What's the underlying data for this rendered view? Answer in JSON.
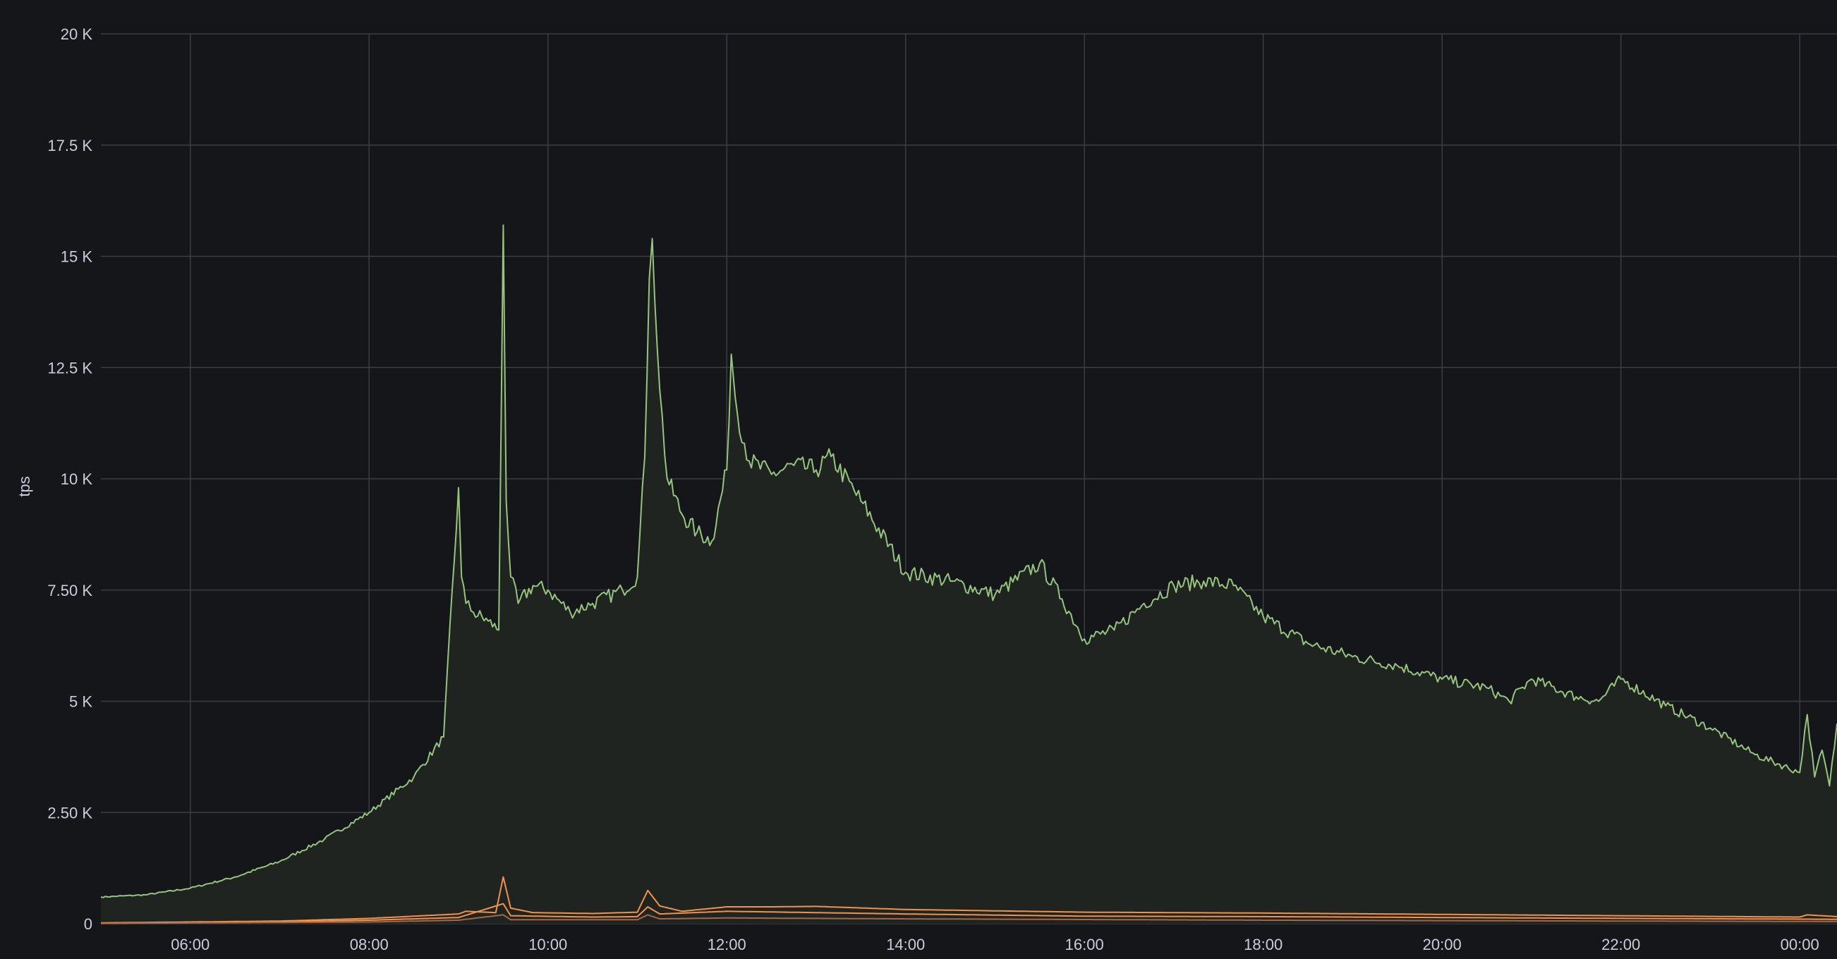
{
  "chart_data": {
    "type": "line",
    "ylabel": "tps",
    "xlabel": "",
    "ylim": [
      0,
      20000
    ],
    "xlim": [
      "05:00",
      "00:25"
    ],
    "grid": true,
    "legend": "none",
    "y_ticks": [
      "0",
      "2.50 K",
      "5 K",
      "7.50 K",
      "10 K",
      "12.5 K",
      "15 K",
      "17.5 K",
      "20 K"
    ],
    "x_ticks": [
      "06:00",
      "08:00",
      "10:00",
      "12:00",
      "14:00",
      "16:00",
      "18:00",
      "20:00",
      "22:00",
      "00:00"
    ],
    "colors": {
      "background": "#141619",
      "grid": "#3a3d42",
      "total": "#96c47e",
      "total_fill": "#1f2420",
      "series_orange": "#f2924a",
      "series_brown": "#a0674a"
    },
    "series": [
      {
        "color": "#96c47e",
        "fill": true,
        "x": [
          "05:00",
          "05:30",
          "06:00",
          "06:30",
          "07:00",
          "07:30",
          "08:00",
          "08:30",
          "08:50",
          "09:00",
          "09:02",
          "09:05",
          "09:10",
          "09:20",
          "09:27",
          "09:30",
          "09:32",
          "09:35",
          "09:40",
          "09:50",
          "10:00",
          "10:15",
          "10:30",
          "10:50",
          "11:00",
          "11:05",
          "11:08",
          "11:10",
          "11:15",
          "11:20",
          "11:30",
          "11:40",
          "11:50",
          "12:00",
          "12:03",
          "12:07",
          "12:15",
          "12:30",
          "12:45",
          "13:00",
          "13:10",
          "13:30",
          "14:00",
          "14:30",
          "15:00",
          "15:30",
          "15:45",
          "16:00",
          "16:20",
          "16:40",
          "17:00",
          "17:20",
          "17:40",
          "18:00",
          "18:30",
          "19:00",
          "19:30",
          "20:00",
          "20:30",
          "20:45",
          "21:00",
          "21:30",
          "21:45",
          "22:00",
          "22:30",
          "23:00",
          "23:30",
          "00:00",
          "00:05",
          "00:10",
          "00:15",
          "00:20",
          "00:25"
        ],
        "values": [
          600,
          650,
          800,
          1050,
          1400,
          1900,
          2500,
          3300,
          4200,
          9800,
          7800,
          7200,
          7000,
          6800,
          6600,
          15700,
          9500,
          7800,
          7200,
          7600,
          7500,
          7000,
          7200,
          7500,
          7800,
          10500,
          14500,
          15400,
          12000,
          10000,
          9200,
          8800,
          8600,
          10200,
          12800,
          11500,
          10400,
          10100,
          10300,
          10200,
          10500,
          9500,
          7900,
          7700,
          7400,
          8100,
          7300,
          6400,
          6600,
          7200,
          7600,
          7700,
          7600,
          6900,
          6300,
          6000,
          5800,
          5500,
          5300,
          5000,
          5500,
          5100,
          5000,
          5500,
          4900,
          4400,
          3800,
          3400,
          4700,
          3300,
          3900,
          3100,
          4500
        ]
      },
      {
        "color": "#f2924a",
        "fill": false,
        "x": [
          "05:00",
          "07:00",
          "08:00",
          "09:00",
          "09:05",
          "09:25",
          "09:30",
          "09:35",
          "09:50",
          "10:30",
          "11:00",
          "11:07",
          "11:15",
          "11:30",
          "12:00",
          "12:30",
          "13:00",
          "14:00",
          "16:00",
          "18:00",
          "20:00",
          "22:00",
          "00:00",
          "00:05",
          "00:25"
        ],
        "values": [
          20,
          60,
          120,
          220,
          280,
          250,
          1050,
          350,
          250,
          230,
          260,
          750,
          400,
          280,
          380,
          380,
          390,
          320,
          260,
          240,
          210,
          180,
          150,
          200,
          160
        ]
      },
      {
        "color": "#f2924a",
        "fill": false,
        "x": [
          "05:00",
          "07:00",
          "08:00",
          "09:00",
          "09:30",
          "09:35",
          "10:30",
          "11:00",
          "11:07",
          "11:15",
          "12:00",
          "13:00",
          "14:00",
          "16:00",
          "18:00",
          "20:00",
          "22:00",
          "00:25"
        ],
        "values": [
          10,
          40,
          80,
          140,
          450,
          180,
          150,
          160,
          380,
          220,
          280,
          250,
          220,
          170,
          160,
          140,
          120,
          100
        ]
      },
      {
        "color": "#a0674a",
        "fill": false,
        "x": [
          "05:00",
          "08:00",
          "09:00",
          "09:30",
          "09:35",
          "11:00",
          "11:07",
          "11:15",
          "12:00",
          "14:00",
          "18:00",
          "22:00",
          "00:25"
        ],
        "values": [
          5,
          40,
          80,
          200,
          90,
          90,
          200,
          110,
          130,
          110,
          80,
          60,
          50
        ]
      }
    ]
  }
}
